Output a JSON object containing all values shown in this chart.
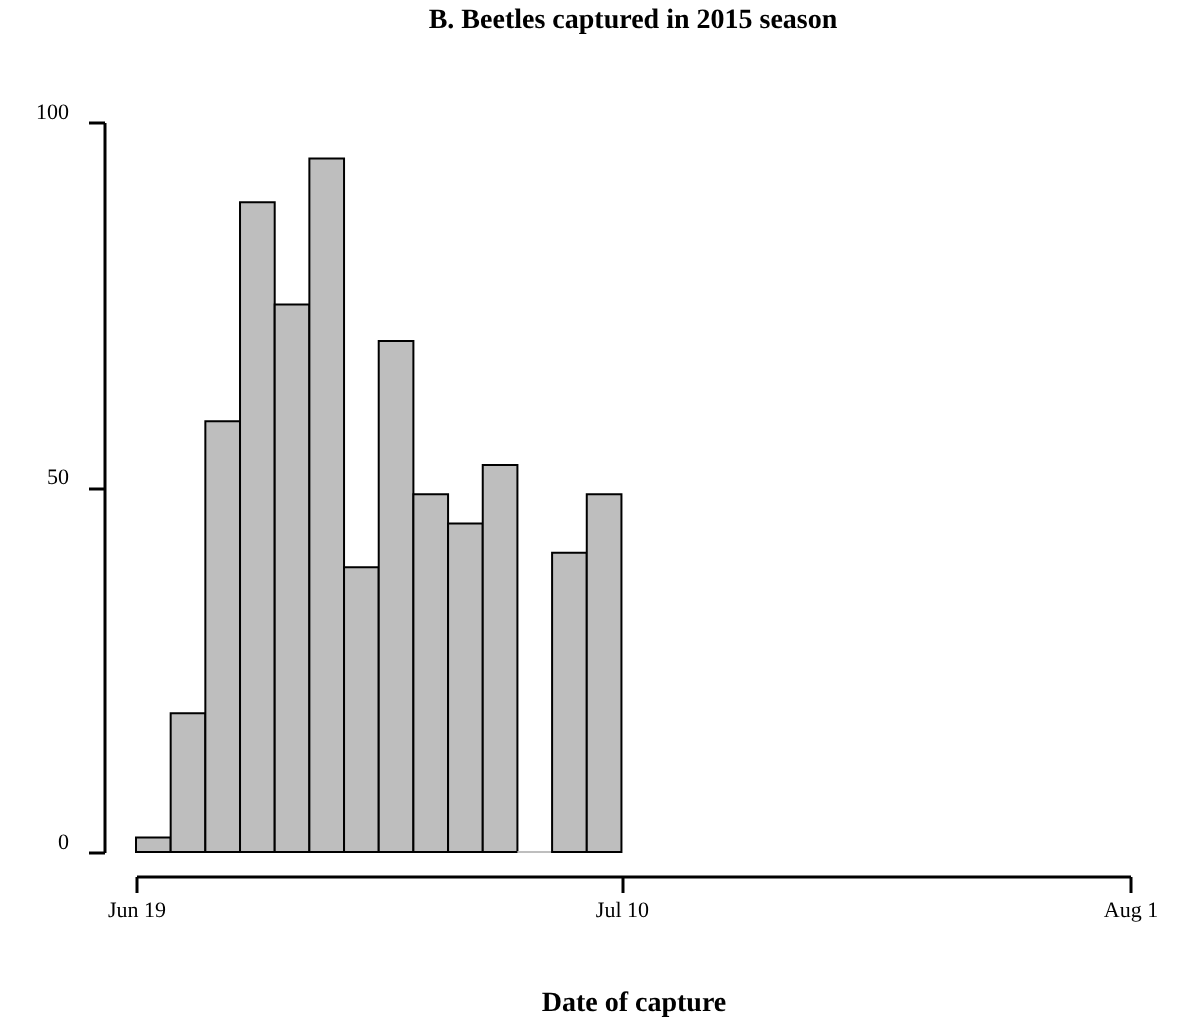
{
  "chart_data": {
    "type": "bar",
    "title": "B. Beetles captured in 2015 season",
    "xlabel": "Date of capture",
    "x": [
      "2015-06-19T18:00",
      "2015-06-21T06:00",
      "2015-06-22T18:00",
      "2015-06-24T06:00",
      "2015-06-25T18:00",
      "2015-06-27T06:00",
      "2015-06-28T18:00",
      "2015-06-30T06:00",
      "2015-07-01T18:00",
      "2015-07-03T06:00",
      "2015-07-04T18:00",
      "2015-07-06T06:00",
      "2015-07-07T18:00",
      "2015-07-09T06:00"
    ],
    "values": [
      2,
      19,
      59,
      89,
      75,
      95,
      39,
      70,
      49,
      45,
      53,
      0,
      41,
      49
    ],
    "color": "#bebebe",
    "xlim": [
      "2015-06-19",
      "2015-08-01"
    ],
    "xticks": [
      {
        "value": "2015-06-19",
        "label": "Jun 19"
      },
      {
        "value": "2015-07-10",
        "label": "Jul 10"
      },
      {
        "value": "2015-08-01",
        "label": "Aug 1"
      }
    ],
    "ylim": [
      0,
      100
    ],
    "yticks": [
      0,
      50,
      100
    ],
    "grid": false
  }
}
